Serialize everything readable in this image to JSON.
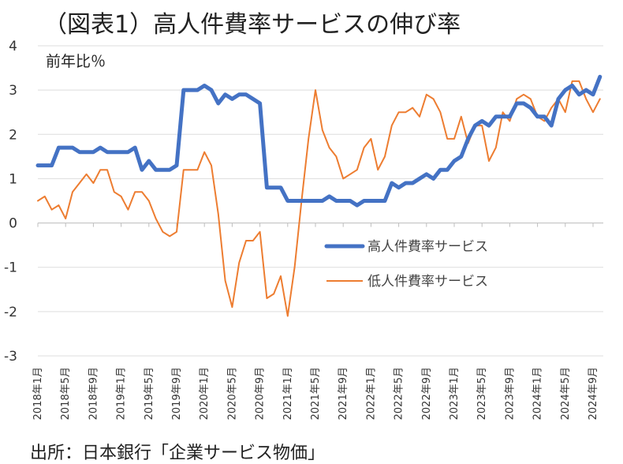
{
  "title": "（図表1）高人件費率サービスの伸び率",
  "source": "出所：日本銀行「企業サービス物価」",
  "chart_data": {
    "type": "line",
    "title": "（図表1）高人件費率サービスの伸び率",
    "ylabel": "前年比％",
    "xlabel": "",
    "ylim": [
      -3,
      4
    ],
    "yticks": [
      4,
      3,
      2,
      1,
      0,
      -1,
      -2,
      -3
    ],
    "xtick_labels": [
      "2018年1月",
      "2018年5月",
      "2018年9月",
      "2019年1月",
      "2019年5月",
      "2019年9月",
      "2020年1月",
      "2020年5月",
      "2020年9月",
      "2021年1月",
      "2021年5月",
      "2021年9月",
      "2022年1月",
      "2022年5月",
      "2022年9月",
      "2023年1月",
      "2023年5月",
      "2023年9月",
      "2024年1月",
      "2024年5月",
      "2024年9月"
    ],
    "legend_position": "center-right",
    "grid": true,
    "x": [
      "2018-01",
      "2018-02",
      "2018-03",
      "2018-04",
      "2018-05",
      "2018-06",
      "2018-07",
      "2018-08",
      "2018-09",
      "2018-10",
      "2018-11",
      "2018-12",
      "2019-01",
      "2019-02",
      "2019-03",
      "2019-04",
      "2019-05",
      "2019-06",
      "2019-07",
      "2019-08",
      "2019-09",
      "2019-10",
      "2019-11",
      "2019-12",
      "2020-01",
      "2020-02",
      "2020-03",
      "2020-04",
      "2020-05",
      "2020-06",
      "2020-07",
      "2020-08",
      "2020-09",
      "2020-10",
      "2020-11",
      "2020-12",
      "2021-01",
      "2021-02",
      "2021-03",
      "2021-04",
      "2021-05",
      "2021-06",
      "2021-07",
      "2021-08",
      "2021-09",
      "2021-10",
      "2021-11",
      "2021-12",
      "2022-01",
      "2022-02",
      "2022-03",
      "2022-04",
      "2022-05",
      "2022-06",
      "2022-07",
      "2022-08",
      "2022-09",
      "2022-10",
      "2022-11",
      "2022-12",
      "2023-01",
      "2023-02",
      "2023-03",
      "2023-04",
      "2023-05",
      "2023-06",
      "2023-07",
      "2023-08",
      "2023-09",
      "2023-10",
      "2023-11",
      "2023-12",
      "2024-01",
      "2024-02",
      "2024-03",
      "2024-04",
      "2024-05",
      "2024-06",
      "2024-07",
      "2024-08",
      "2024-09",
      "2024-10"
    ],
    "series": [
      {
        "name": "高人件費率サービス",
        "color": "#4472C4",
        "values": [
          1.3,
          1.3,
          1.3,
          1.7,
          1.7,
          1.7,
          1.6,
          1.6,
          1.6,
          1.7,
          1.6,
          1.6,
          1.6,
          1.6,
          1.7,
          1.2,
          1.4,
          1.2,
          1.2,
          1.2,
          1.3,
          3.0,
          3.0,
          3.0,
          3.1,
          3.0,
          2.7,
          2.9,
          2.8,
          2.9,
          2.9,
          2.8,
          2.7,
          0.8,
          0.8,
          0.8,
          0.5,
          0.5,
          0.5,
          0.5,
          0.5,
          0.5,
          0.6,
          0.5,
          0.5,
          0.5,
          0.4,
          0.5,
          0.5,
          0.5,
          0.5,
          0.9,
          0.8,
          0.9,
          0.9,
          1.0,
          1.1,
          1.0,
          1.2,
          1.2,
          1.4,
          1.5,
          1.9,
          2.2,
          2.3,
          2.2,
          2.4,
          2.4,
          2.4,
          2.7,
          2.7,
          2.6,
          2.4,
          2.4,
          2.2,
          2.8,
          3.0,
          3.1,
          2.9,
          3.0,
          2.9,
          3.3
        ]
      },
      {
        "name": "低人件費率サービス",
        "color": "#ED7D31",
        "values": [
          0.5,
          0.6,
          0.3,
          0.4,
          0.1,
          0.7,
          0.9,
          1.1,
          0.9,
          1.2,
          1.2,
          0.7,
          0.6,
          0.3,
          0.7,
          0.7,
          0.5,
          0.1,
          -0.2,
          -0.3,
          -0.2,
          1.2,
          1.2,
          1.2,
          1.6,
          1.3,
          0.2,
          -1.3,
          -1.9,
          -0.9,
          -0.4,
          -0.4,
          -0.2,
          -1.7,
          -1.6,
          -1.2,
          -2.1,
          -1.0,
          0.5,
          1.9,
          3.0,
          2.1,
          1.7,
          1.5,
          1.0,
          1.1,
          1.2,
          1.7,
          1.9,
          1.2,
          1.5,
          2.2,
          2.5,
          2.5,
          2.6,
          2.4,
          2.9,
          2.8,
          2.5,
          1.9,
          1.9,
          2.4,
          1.8,
          2.2,
          2.2,
          1.4,
          1.7,
          2.5,
          2.3,
          2.8,
          2.9,
          2.8,
          2.4,
          2.3,
          2.6,
          2.8,
          2.5,
          3.2,
          3.2,
          2.8,
          2.5,
          2.8
        ]
      }
    ]
  }
}
